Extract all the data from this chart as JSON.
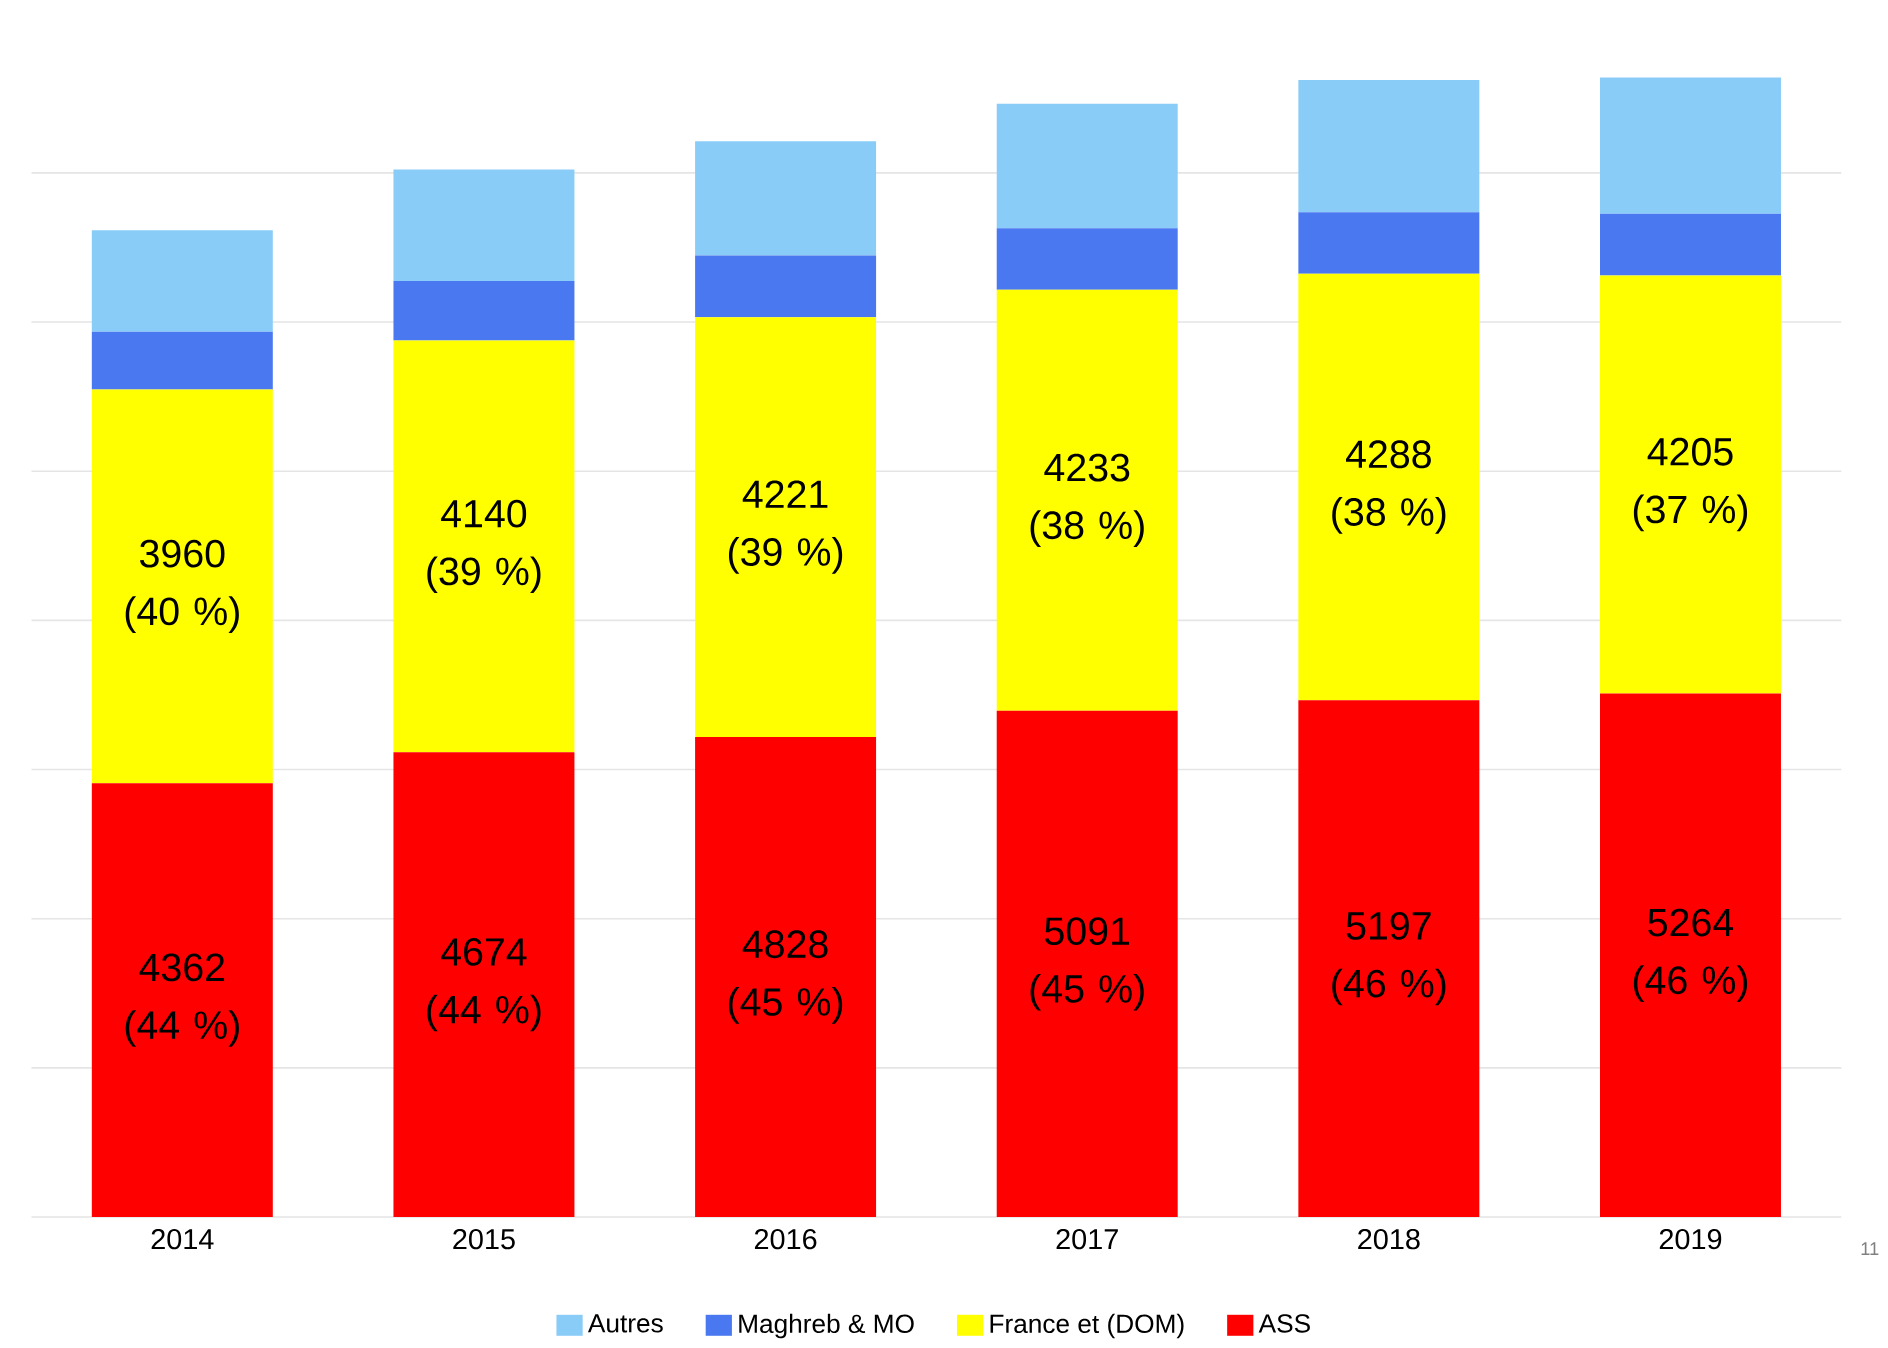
{
  "chart_data": {
    "type": "bar",
    "stacked": true,
    "categories": [
      "2014",
      "2015",
      "2016",
      "2017",
      "2018",
      "2019"
    ],
    "series": [
      {
        "name": "ASS",
        "color": "#ff0000",
        "values": [
          4362,
          4674,
          4828,
          5091,
          5197,
          5264
        ],
        "value_labels": [
          "4362 (44 %)",
          "4674 (44 %)",
          "4828 (45 %)",
          "5091 (45 %)",
          "5197 (46 %)",
          "5264 (46 %)"
        ]
      },
      {
        "name": "France et (DOM)",
        "color": "#ffff00",
        "values": [
          3960,
          4140,
          4221,
          4233,
          4288,
          4205
        ],
        "value_labels": [
          "3960 (40 %)",
          "4140 (39 %)",
          "4221 (39 %)",
          "4233 (38 %)",
          "4288 (38 %)",
          "4205 (37 %)"
        ]
      },
      {
        "name": "Maghreb & MO",
        "color": "#4a78f0",
        "values": [
          580,
          600,
          620,
          620,
          620,
          620
        ]
      },
      {
        "name": "Autres",
        "color": "#8accf8",
        "values": [
          1020,
          1120,
          1150,
          1250,
          1330,
          1370
        ]
      }
    ],
    "ylim": [
      0,
      11500
    ],
    "yticks": [
      {
        "value": 0,
        "label": null
      },
      {
        "value": 1500,
        "label": null
      },
      {
        "value": 3000,
        "label": null
      },
      {
        "value": 4500,
        "label": null
      },
      {
        "value": 6000,
        "label": null
      },
      {
        "value": 7500,
        "label": null
      },
      {
        "value": 9000,
        "label": null
      },
      {
        "value": 10500,
        "label": null
      }
    ],
    "grid": "y",
    "tick_labels": "x",
    "legend": "bottom",
    "annotations": [
      "11"
    ]
  }
}
